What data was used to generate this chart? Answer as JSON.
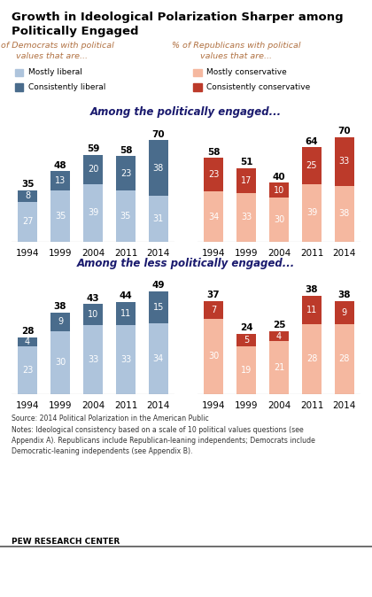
{
  "title_line1": "Growth in Ideological Polarization Sharper among",
  "title_line2": "Politically Engaged",
  "subtitle_dem": "% of Democrats with political\nvalues that are...",
  "subtitle_rep": "% of Republicans with political\nvalues that are...",
  "section1_title": "Among the politically engaged...",
  "section2_title": "Among the less politically engaged...",
  "years": [
    "1994",
    "1999",
    "2004",
    "2011",
    "2014"
  ],
  "engaged_dem_mostly": [
    27,
    35,
    39,
    35,
    31
  ],
  "engaged_dem_consistently": [
    8,
    13,
    20,
    23,
    38
  ],
  "engaged_dem_total": [
    35,
    48,
    59,
    58,
    70
  ],
  "engaged_rep_mostly": [
    34,
    33,
    30,
    39,
    38
  ],
  "engaged_rep_consistently": [
    23,
    17,
    10,
    25,
    33
  ],
  "engaged_rep_total": [
    58,
    51,
    40,
    64,
    70
  ],
  "less_dem_mostly": [
    23,
    30,
    33,
    33,
    34
  ],
  "less_dem_consistently": [
    4,
    9,
    10,
    11,
    15
  ],
  "less_dem_total": [
    28,
    38,
    43,
    44,
    49
  ],
  "less_rep_mostly": [
    30,
    19,
    21,
    28,
    28
  ],
  "less_rep_consistently": [
    7,
    5,
    4,
    11,
    9
  ],
  "less_rep_total": [
    37,
    24,
    25,
    38,
    38
  ],
  "color_mostly_liberal": "#aec4dc",
  "color_consistently_liberal": "#4a6c8c",
  "color_mostly_conservative": "#f5b8a0",
  "color_consistently_conservative": "#bc3a2a",
  "source_text": "Source: 2014 Political Polarization in the American Public\nNotes: Ideological consistency based on a scale of 10 political values questions (see\nAppendix A). Republicans include Republican-leaning independents; Democrats include\nDemocratic-leaning independents (see Appendix B).",
  "pew_text": "PEW RESEARCH CENTER"
}
